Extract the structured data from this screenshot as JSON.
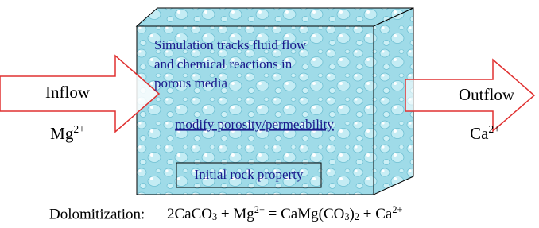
{
  "inflow": {
    "label": "Inflow",
    "ion": [
      {
        "text": "Mg"
      },
      {
        "sup": "2+"
      }
    ]
  },
  "outflow": {
    "label": "Outflow",
    "ion": [
      {
        "text": "Ca"
      },
      {
        "sup": "2+"
      }
    ]
  },
  "box": {
    "lines": [
      "Simulation tracks fluid flow",
      "and chemical reactions in",
      "porous media"
    ],
    "link": "modify porosity/permeability",
    "property": "Initial rock property"
  },
  "reaction": {
    "label": "Dolomitization:",
    "equation": [
      {
        "text": "2CaCO"
      },
      {
        "sub": "3"
      },
      {
        "text": " + Mg"
      },
      {
        "sup": "2+"
      },
      {
        "text": " = CaMg(CO"
      },
      {
        "sub": "3"
      },
      {
        "text": ")"
      },
      {
        "sub": "2"
      },
      {
        "text": " + Ca"
      },
      {
        "sup": "2+"
      }
    ]
  }
}
